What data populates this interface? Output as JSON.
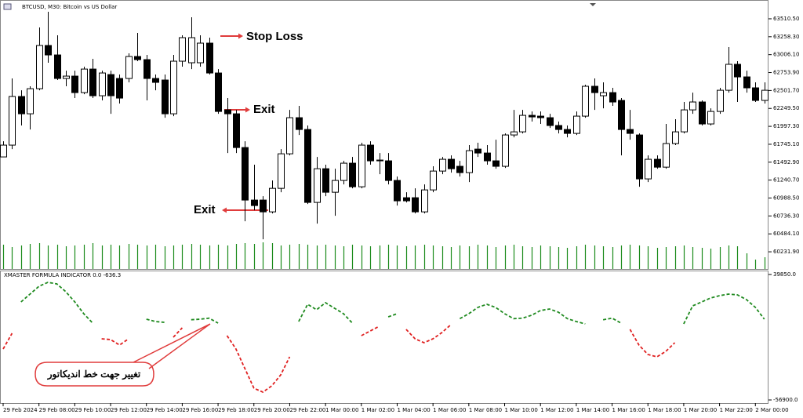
{
  "chart_data": [
    {
      "type": "candlestick",
      "title": "BTCUSD, M30:  Bitcoin vs US Dollar",
      "categories": [
        "29 Feb 2024",
        null,
        null,
        null,
        "29 Feb 08:00",
        null,
        null,
        null,
        "29 Feb 10:00",
        null,
        null,
        null,
        "29 Feb 12:00",
        null,
        null,
        null,
        "29 Feb 14:00",
        null,
        null,
        null,
        "29 Feb 16:00",
        null,
        null,
        null,
        "29 Feb 18:00",
        null,
        null,
        null,
        "29 Feb 20:00",
        null,
        null,
        null,
        "29 Feb 22:00",
        null,
        null,
        null,
        "1 Mar 00:00",
        null,
        null,
        null,
        "1 Mar 02:00",
        null,
        null,
        null,
        "1 Mar 04:00",
        null,
        null,
        null,
        "1 Mar 06:00",
        null,
        null,
        null,
        "1 Mar 08:00",
        null,
        null,
        null,
        "1 Mar 10:00",
        null,
        null,
        null,
        "1 Mar 12:00",
        null,
        null,
        null,
        "1 Mar 14:00",
        null,
        null,
        null,
        "1 Mar 16:00",
        null,
        null,
        null,
        "1 Mar 18:00",
        null,
        null,
        null,
        "1 Mar 20:00",
        null,
        null,
        null,
        "1 Mar 22:00",
        null,
        null,
        null,
        "2 Mar 00:00",
        null
      ],
      "open": [
        61567,
        61733,
        62417,
        62174,
        62527,
        63135,
        63002,
        62671,
        62704,
        62472,
        62803,
        62428,
        62726,
        62671,
        62671,
        62980,
        62936,
        62671,
        62649,
        62174,
        62914,
        62892,
        62892,
        63168,
        62748,
        62229,
        62174,
        61699,
        60960,
        60960,
        60794,
        61125,
        61611,
        62119,
        61953,
        60927,
        61401,
        61070,
        61236,
        61479,
        61147,
        61733,
        61523,
        61512,
        61236,
        60993,
        60993,
        60794,
        61103,
        61368,
        61534,
        61435,
        61346,
        61677,
        61622,
        61512,
        61435,
        61876,
        61920,
        62152,
        62141,
        62119,
        62009,
        61953,
        61898,
        62141,
        62561,
        62428,
        62472,
        62362,
        61953,
        61876,
        61258,
        61534,
        61423,
        61755,
        61920,
        62229,
        62340,
        62031,
        62207,
        62505,
        62870,
        62693,
        62539,
        62362
      ],
      "high": [
        61788,
        62671,
        62505,
        62561,
        63389,
        63609,
        63278,
        62781,
        62781,
        62837,
        62947,
        62781,
        62781,
        62726,
        63024,
        63311,
        63002,
        62726,
        62726,
        63002,
        63278,
        63532,
        63278,
        63245,
        62803,
        62395,
        62229,
        61788,
        61457,
        61015,
        61236,
        61677,
        62229,
        62285,
        62009,
        61567,
        61457,
        61401,
        61512,
        61567,
        61766,
        61788,
        61622,
        61622,
        61291,
        61070,
        61125,
        61181,
        61435,
        61567,
        61589,
        61512,
        61733,
        61766,
        61733,
        61810,
        61898,
        62229,
        62229,
        62207,
        62207,
        62174,
        62064,
        62009,
        62207,
        62583,
        62671,
        62616,
        62539,
        62395,
        62229,
        61898,
        61589,
        61589,
        62031,
        62097,
        62340,
        62472,
        62362,
        62251,
        62539,
        63113,
        62914,
        62781,
        62616,
        62616
      ],
      "low": [
        61567,
        61677,
        62009,
        61953,
        62505,
        62892,
        62649,
        62561,
        62395,
        62450,
        62395,
        62362,
        62174,
        62318,
        62616,
        62914,
        62362,
        62505,
        62119,
        62141,
        62837,
        62803,
        62837,
        62726,
        62174,
        61622,
        61622,
        60662,
        60816,
        60408,
        60772,
        61070,
        61589,
        61876,
        60905,
        60629,
        61015,
        60739,
        61181,
        61125,
        61125,
        61457,
        61324,
        61181,
        60883,
        60927,
        60772,
        60772,
        61070,
        61324,
        61346,
        61291,
        61214,
        61567,
        61457,
        61401,
        61412,
        61843,
        61898,
        62064,
        62031,
        61975,
        61898,
        61843,
        61876,
        62119,
        62229,
        62251,
        62285,
        61589,
        61810,
        61147,
        61214,
        61401,
        61401,
        61733,
        61898,
        62174,
        62009,
        62009,
        62174,
        62472,
        62340,
        62472,
        62340,
        62318
      ],
      "close": [
        61733,
        62417,
        62174,
        62527,
        63135,
        63002,
        62671,
        62704,
        62472,
        62803,
        62428,
        62748,
        62428,
        62395,
        62980,
        62936,
        62671,
        62616,
        62174,
        62914,
        63245,
        63245,
        63168,
        62748,
        62207,
        62174,
        61699,
        60960,
        60883,
        60794,
        61125,
        61611,
        62119,
        61953,
        60927,
        61401,
        61070,
        61236,
        61479,
        61147,
        61733,
        61512,
        61512,
        61236,
        60949,
        60949,
        60794,
        61103,
        61368,
        61534,
        61401,
        61346,
        61655,
        61622,
        61512,
        61435,
        61876,
        61920,
        62152,
        62130,
        62119,
        62009,
        61953,
        61898,
        62141,
        62561,
        62472,
        62472,
        62340,
        61953,
        61898,
        61258,
        61534,
        61423,
        61755,
        61920,
        62229,
        62340,
        62031,
        62207,
        62505,
        62870,
        62693,
        62539,
        62362,
        62505
      ],
      "volumes": [
        31,
        28,
        30,
        32,
        33,
        30,
        31,
        29,
        30,
        31,
        33,
        30,
        31,
        30,
        32,
        31,
        30,
        31,
        29,
        30,
        31,
        32,
        31,
        30,
        31,
        30,
        32,
        33,
        32,
        34,
        33,
        30,
        31,
        32,
        31,
        30,
        31,
        30,
        29,
        31,
        30,
        29,
        30,
        31,
        30,
        29,
        30,
        31,
        30,
        29,
        28,
        30,
        29,
        31,
        30,
        28,
        30,
        31,
        29,
        28,
        30,
        29,
        28,
        27,
        29,
        31,
        30,
        29,
        28,
        30,
        31,
        30,
        29,
        27,
        28,
        29,
        30,
        28,
        27,
        26,
        28,
        30,
        29,
        20,
        12,
        15
      ],
      "up_color": "#ffffff",
      "down_color": "#000000",
      "volume_color": "#1a8a1a",
      "ylim": [
        59990,
        63775
      ],
      "yticks": [
        {
          "value": 63510.5,
          "label": "63510.50"
        },
        {
          "value": 63258.3,
          "label": "63258.30"
        },
        {
          "value": 63006.1,
          "label": "63006.10"
        },
        {
          "value": 62753.9,
          "label": "62753.90"
        },
        {
          "value": 62501.7,
          "label": "62501.70"
        },
        {
          "value": 62249.5,
          "label": "62249.50"
        },
        {
          "value": 61997.3,
          "label": "61997.30"
        },
        {
          "value": 61745.1,
          "label": "61745.10"
        },
        {
          "value": 61492.9,
          "label": "61492.90"
        },
        {
          "value": 61240.7,
          "label": "61240.70"
        },
        {
          "value": 60988.5,
          "label": "60988.50"
        },
        {
          "value": 60736.3,
          "label": "60736.30"
        },
        {
          "value": 60484.1,
          "label": "60484.10"
        },
        {
          "value": 60231.9,
          "label": "60231.90"
        }
      ],
      "annotations": [
        {
          "text": "Stop Loss",
          "color": "#e03c3c"
        },
        {
          "text": "Exit",
          "color": "#2a9a2a"
        },
        {
          "text": "Exit",
          "color": "#2c5fd6"
        },
        {
          "text": "تغییر جهت خط اندیکاتور",
          "color": "#e03c3c"
        }
      ]
    },
    {
      "type": "line",
      "title": "XMASTER FORMULA INDICATOR 0.0 -636.3",
      "series": [
        {
          "color": "#1f8a1f",
          "values": [
            null,
            null,
            18685,
            24733,
            30780,
            33803,
            32594,
            26547,
            18685,
            9615,
            2359,
            null,
            null,
            null,
            null,
            null,
            5382,
            3568,
            2963,
            null,
            null,
            4977,
            5382,
            6177,
            2359,
            null,
            null,
            null,
            null,
            null,
            null,
            null,
            null,
            3568,
            16871,
            12639,
            18081,
            13847,
            9615,
            2359,
            null,
            null,
            null,
            7196,
            9615,
            null,
            null,
            null,
            null,
            null,
            null,
            5782,
            9615,
            14453,
            16871,
            14453,
            9615,
            5782,
            6177,
            8406,
            12034,
            13243,
            10824,
            5782,
            3568,
            1754,
            null,
            4977,
            6177,
            2359,
            null,
            null,
            null,
            null,
            null,
            null,
            1754,
            15662,
            18685,
            21709,
            23523,
            24733,
            24128,
            20500,
            14453,
            5382
          ]
        },
        {
          "color": "#e02020",
          "values": [
            -17597,
            -5503,
            null,
            null,
            null,
            null,
            null,
            null,
            null,
            null,
            null,
            -9735,
            -10340,
            -14573,
            -9735,
            null,
            null,
            null,
            null,
            -8526,
            -1270,
            null,
            null,
            null,
            null,
            -7317,
            -17597,
            -32714,
            -47832,
            -50855,
            -46017,
            -37552,
            -23644,
            null,
            null,
            null,
            null,
            null,
            null,
            null,
            -7317,
            -3688,
            -60,
            null,
            null,
            -2479,
            -9735,
            -12759,
            -9735,
            -4898,
            1149,
            null,
            null,
            null,
            null,
            null,
            null,
            null,
            null,
            null,
            null,
            null,
            null,
            null,
            null,
            null,
            null,
            null,
            null,
            null,
            -2479,
            -14573,
            -21835,
            -23644,
            -19411,
            -12759,
            null,
            null,
            null,
            null,
            null,
            null,
            null,
            null,
            null,
            null
          ]
        }
      ],
      "ylim": [
        -59926,
        42874
      ],
      "yticks": [
        {
          "value": 39850,
          "label": "39850.0"
        },
        {
          "value": -56900,
          "label": "-56900.0"
        }
      ]
    }
  ]
}
